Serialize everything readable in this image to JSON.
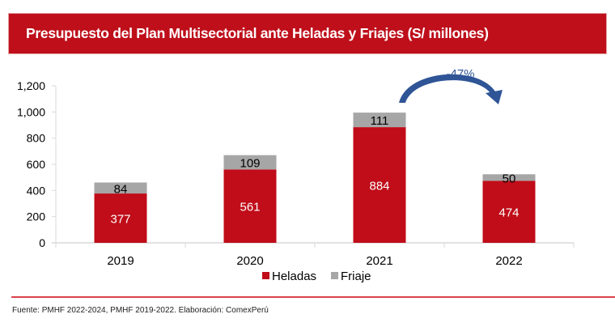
{
  "header": {
    "title": "Presupuesto del Plan Multisectorial ante Heladas y Friajes (S/ millones)"
  },
  "chart_data": {
    "type": "bar",
    "stacked": true,
    "title": "Presupuesto del Plan Multisectorial ante Heladas y Friajes (S/ millones)",
    "xlabel": "",
    "ylabel": "",
    "categories": [
      "2019",
      "2020",
      "2021",
      "2022"
    ],
    "series": [
      {
        "name": "Heladas",
        "color": "#c00d19",
        "values": [
          377,
          561,
          884,
          474
        ],
        "label_color": "#ffffff"
      },
      {
        "name": "Friaje",
        "color": "#a6a6a6",
        "values": [
          84,
          109,
          111,
          50
        ],
        "label_color": "#000000"
      }
    ],
    "ylim": [
      0,
      1200
    ],
    "yticks": [
      0,
      200,
      400,
      600,
      800,
      1000,
      1200
    ],
    "ytick_labels": [
      "0",
      "200",
      "400",
      "600",
      "800",
      "1,000",
      "1,200"
    ],
    "grid": false,
    "legend": "bottom",
    "annotations": [
      {
        "text": "-47%",
        "type": "curved-arrow",
        "from": "2021",
        "to": "2022",
        "color": "#2f5597"
      }
    ]
  },
  "footer": {
    "source": "Fuente: PMHF 2022-2024, PMHF 2019-2022. Elaboración: ComexPerú"
  }
}
